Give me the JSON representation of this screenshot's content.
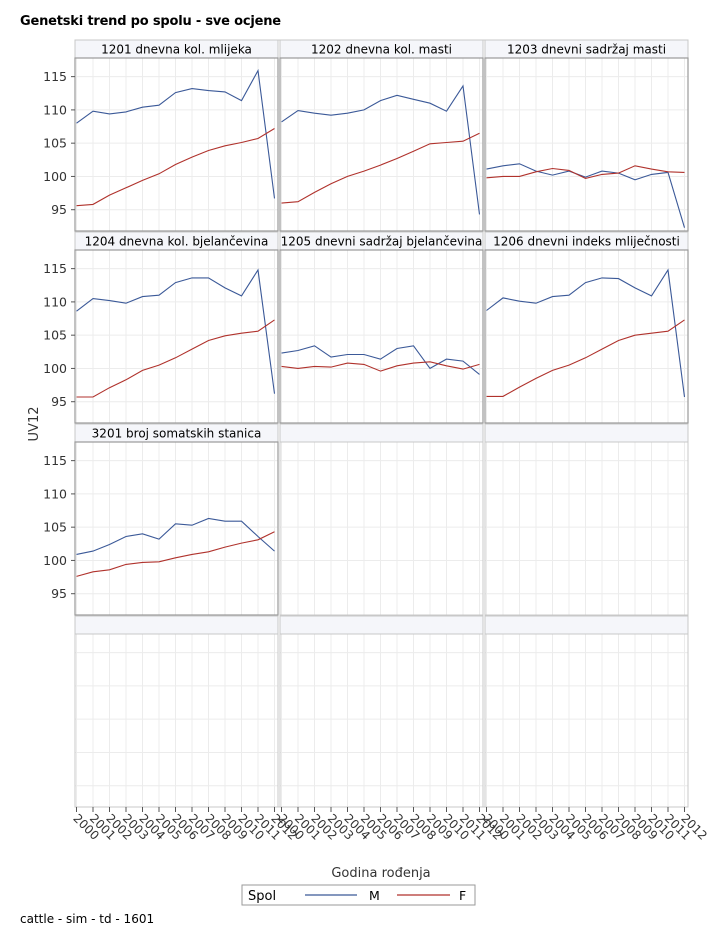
{
  "title": "Genetski trend po spolu - sve ocjene",
  "footnote": "cattle - sim - td - 1601",
  "chart_data": {
    "type": "line",
    "layout": "panel-grid 3 columns x 4 rows",
    "xlabel": "Godina rođenja",
    "ylabel": "UV12",
    "x": [
      2000,
      2001,
      2002,
      2003,
      2004,
      2005,
      2006,
      2007,
      2008,
      2009,
      2010,
      2011,
      2012
    ],
    "x_tick_labels": [
      "2000",
      "2001",
      "2002",
      "2003",
      "2004",
      "2005",
      "2006",
      "2007",
      "2008",
      "2009",
      "2010",
      "2011",
      "2012"
    ],
    "ylim": [
      91.8,
      117.8
    ],
    "y_ticks": [
      95,
      100,
      105,
      110,
      115
    ],
    "grid": true,
    "legend": {
      "title": "Spol",
      "placement": "bottom-center",
      "entries": [
        {
          "name": "M",
          "color": "#3b5998"
        },
        {
          "name": "F",
          "color": "#b0322c"
        }
      ]
    },
    "panels": [
      {
        "label": "1201 dnevna kol. mlijeka",
        "series": [
          {
            "name": "M",
            "values": [
              108.0,
              109.8,
              109.4,
              109.7,
              110.4,
              110.7,
              112.6,
              113.2,
              112.9,
              112.7,
              111.4,
              115.9,
              96.7
            ]
          },
          {
            "name": "F",
            "values": [
              95.6,
              95.8,
              97.2,
              98.3,
              99.4,
              100.4,
              101.8,
              102.9,
              103.9,
              104.6,
              105.1,
              105.7,
              107.2
            ]
          }
        ]
      },
      {
        "label": "1202 dnevna kol. masti",
        "series": [
          {
            "name": "M",
            "values": [
              108.2,
              109.9,
              109.5,
              109.2,
              109.5,
              110.0,
              111.4,
              112.2,
              111.6,
              111.0,
              109.8,
              113.6,
              94.3
            ]
          },
          {
            "name": "F",
            "values": [
              96.0,
              96.2,
              97.6,
              98.9,
              100.0,
              100.8,
              101.7,
              102.7,
              103.8,
              104.9,
              105.1,
              105.3,
              106.5
            ]
          }
        ]
      },
      {
        "label": "1203 dnevni sadržaj masti",
        "series": [
          {
            "name": "M",
            "values": [
              101.1,
              101.6,
              101.9,
              100.8,
              100.2,
              100.8,
              99.9,
              100.8,
              100.5,
              99.5,
              100.3,
              100.6,
              92.3
            ]
          },
          {
            "name": "F",
            "values": [
              99.8,
              100.0,
              100.0,
              100.7,
              101.2,
              100.9,
              99.7,
              100.3,
              100.5,
              101.6,
              101.1,
              100.7,
              100.6
            ]
          }
        ]
      },
      {
        "label": "1204 dnevna kol. bjelančevina",
        "series": [
          {
            "name": "M",
            "values": [
              108.6,
              110.5,
              110.2,
              109.8,
              110.8,
              111.0,
              112.9,
              113.6,
              113.6,
              112.1,
              110.9,
              114.8,
              96.2
            ]
          },
          {
            "name": "F",
            "values": [
              95.7,
              95.7,
              97.1,
              98.3,
              99.7,
              100.5,
              101.6,
              102.9,
              104.2,
              104.9,
              105.3,
              105.6,
              107.3
            ]
          }
        ]
      },
      {
        "label": "1205 dnevni sadržaj bjelančevina",
        "series": [
          {
            "name": "M",
            "values": [
              102.3,
              102.7,
              103.4,
              101.7,
              102.1,
              102.1,
              101.4,
              103.0,
              103.4,
              100.0,
              101.4,
              101.1,
              99.1
            ]
          },
          {
            "name": "F",
            "values": [
              100.3,
              100.0,
              100.3,
              100.2,
              100.8,
              100.6,
              99.6,
              100.4,
              100.8,
              101.0,
              100.4,
              99.9,
              100.6
            ]
          }
        ]
      },
      {
        "label": "1206 dnevni indeks mliječnosti",
        "series": [
          {
            "name": "M",
            "values": [
              108.7,
              110.6,
              110.1,
              109.8,
              110.8,
              111.0,
              112.9,
              113.6,
              113.5,
              112.1,
              110.9,
              114.8,
              95.7
            ]
          },
          {
            "name": "F",
            "values": [
              95.8,
              95.8,
              97.2,
              98.5,
              99.7,
              100.5,
              101.6,
              102.9,
              104.2,
              105.0,
              105.3,
              105.6,
              107.3
            ]
          }
        ]
      },
      {
        "label": "3201 broj somatskih stanica",
        "series": [
          {
            "name": "M",
            "values": [
              100.9,
              101.4,
              102.4,
              103.6,
              104.0,
              103.2,
              105.5,
              105.3,
              106.3,
              105.9,
              105.9,
              103.6,
              101.4
            ]
          },
          {
            "name": "F",
            "values": [
              97.6,
              98.3,
              98.6,
              99.4,
              99.7,
              99.8,
              100.4,
              100.9,
              101.3,
              102.0,
              102.6,
              103.1,
              104.3
            ]
          }
        ]
      }
    ]
  }
}
